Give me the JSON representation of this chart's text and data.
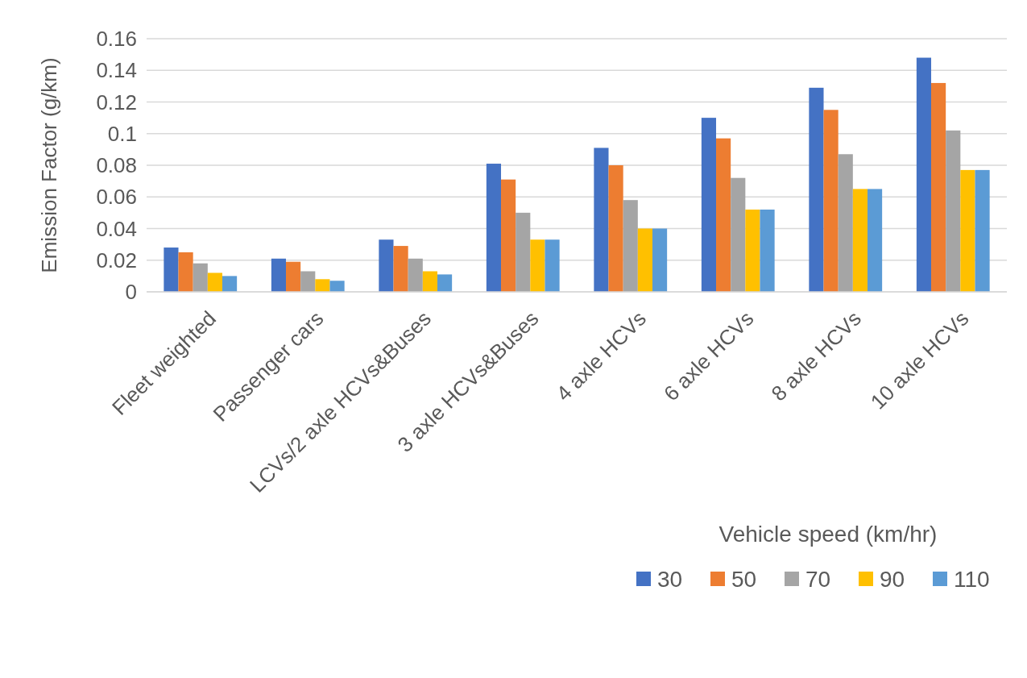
{
  "chart_data": {
    "type": "bar",
    "ylabel": "Emission Factor (g/km)",
    "xlabel": "Vehicle speed (km/hr)",
    "categories": [
      "Fleet weighted",
      "Passenger cars",
      "LCVs/2 axle HCVs&Buses",
      "3 axle HCVs&Buses",
      "4 axle HCVs",
      "6 axle HCVs",
      "8 axle HCVs",
      "10 axle HCVs"
    ],
    "series": [
      {
        "name": "30",
        "color": "#4472c4",
        "values": [
          0.028,
          0.021,
          0.033,
          0.081,
          0.091,
          0.11,
          0.129,
          0.148
        ]
      },
      {
        "name": "50",
        "color": "#ed7d31",
        "values": [
          0.025,
          0.019,
          0.029,
          0.071,
          0.08,
          0.097,
          0.115,
          0.132
        ]
      },
      {
        "name": "70",
        "color": "#a5a5a5",
        "values": [
          0.018,
          0.013,
          0.021,
          0.05,
          0.058,
          0.072,
          0.087,
          0.102
        ]
      },
      {
        "name": "90",
        "color": "#ffc000",
        "values": [
          0.012,
          0.008,
          0.013,
          0.033,
          0.04,
          0.052,
          0.065,
          0.077
        ]
      },
      {
        "name": "110",
        "color": "#5b9bd5",
        "values": [
          0.01,
          0.007,
          0.011,
          0.033,
          0.04,
          0.052,
          0.065,
          0.077
        ]
      }
    ],
    "ylim": [
      0,
      0.16
    ],
    "yticks": [
      0,
      0.02,
      0.04,
      0.06,
      0.08,
      0.1,
      0.12,
      0.14,
      0.16
    ],
    "grid": "y",
    "legend": "bottom right"
  }
}
